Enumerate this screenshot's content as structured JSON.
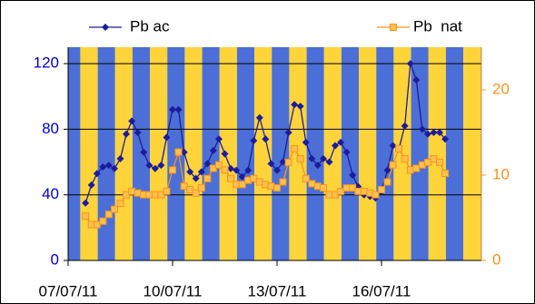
{
  "chart_data": {
    "type": "line",
    "x": [
      0.5,
      0.67,
      0.83,
      1,
      1.17,
      1.33,
      1.5,
      1.67,
      1.83,
      2,
      2.17,
      2.33,
      2.5,
      2.67,
      2.83,
      3,
      3.17,
      3.33,
      3.5,
      3.67,
      3.83,
      4,
      4.17,
      4.33,
      4.5,
      4.67,
      4.83,
      5,
      5.17,
      5.33,
      5.5,
      5.67,
      5.83,
      6,
      6.17,
      6.33,
      6.5,
      6.67,
      6.83,
      7,
      7.17,
      7.33,
      7.5,
      7.67,
      7.83,
      8,
      8.17,
      8.33,
      8.5,
      8.67,
      8.83,
      9,
      9.17,
      9.33,
      9.5,
      9.67,
      9.83,
      10,
      10.17,
      10.33,
      10.5,
      10.67,
      10.83
    ],
    "series": [
      {
        "name": "Pb ac",
        "color": "#1c1c9c",
        "values": [
          35,
          46,
          53,
          57,
          58,
          56,
          62,
          77,
          85,
          78,
          66,
          58,
          56,
          58,
          75,
          92,
          92,
          66,
          54,
          50,
          54,
          59,
          67,
          74,
          65,
          56,
          55,
          51,
          55,
          73,
          87,
          74,
          59,
          55,
          60,
          78,
          95,
          94,
          72,
          62,
          58,
          62,
          60,
          70,
          72,
          66,
          52,
          45,
          40,
          39,
          38,
          42,
          55,
          70,
          68,
          82,
          120,
          110,
          80,
          77,
          78,
          78,
          74
        ]
      },
      {
        "name": "Pb  nat",
        "color": "#f7941d",
        "axis": "y2",
        "values": [
          5.2,
          4.2,
          4.2,
          4.6,
          5.4,
          6.0,
          6.7,
          7.7,
          8.1,
          7.9,
          7.7,
          7.7,
          7.7,
          7.7,
          8.1,
          10.6,
          12.7,
          8.7,
          8.3,
          7.9,
          8.5,
          9.6,
          10.8,
          11.2,
          10.6,
          9.6,
          8.9,
          8.9,
          9.4,
          9.6,
          9.2,
          8.9,
          8.7,
          8.5,
          9.2,
          11.5,
          13.1,
          11.9,
          9.6,
          9.0,
          8.7,
          8.5,
          7.7,
          7.7,
          8.1,
          8.5,
          8.5,
          8.1,
          8.1,
          7.9,
          7.7,
          8.3,
          9.2,
          11.2,
          13.1,
          11.9,
          10.6,
          10.8,
          11.2,
          11.5,
          11.9,
          11.5,
          10.2
        ]
      }
    ],
    "xlim": [
      0,
      11.87
    ],
    "xticks": [
      {
        "value": 0,
        "label": "07/07/11"
      },
      {
        "value": 3,
        "label": "10/07/11"
      },
      {
        "value": 6,
        "label": "13/07/11"
      },
      {
        "value": 9,
        "label": "16/07/11"
      }
    ],
    "ylim": [
      0,
      130
    ],
    "yticks": [
      0,
      40,
      80,
      120
    ],
    "y2lim": [
      0,
      25
    ],
    "y2ticks": [
      0,
      10,
      20
    ],
    "grid": true
  }
}
